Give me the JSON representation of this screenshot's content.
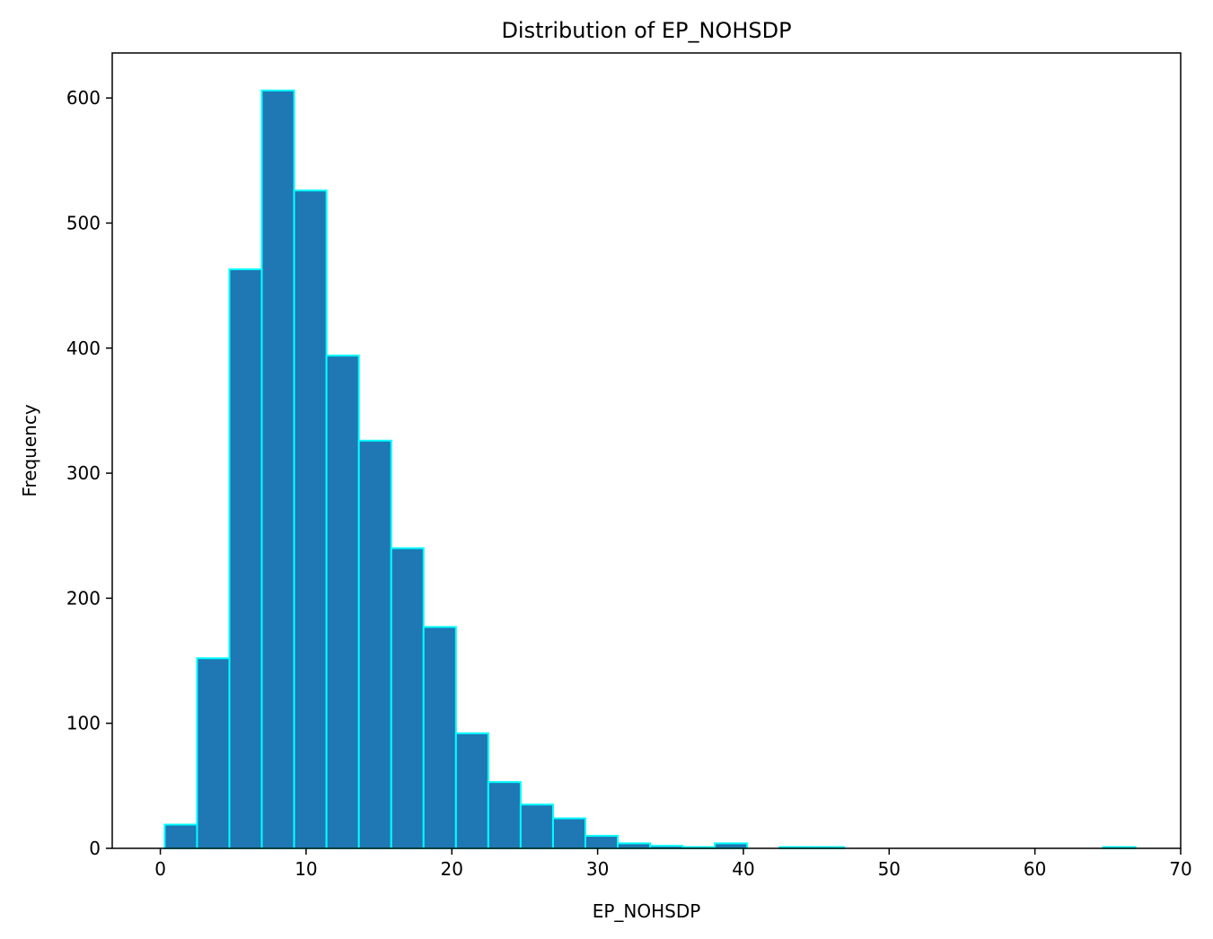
{
  "chart_data": {
    "type": "bar",
    "title": "Distribution of EP_NOHSDP",
    "xlabel": "EP_NOHSDP",
    "ylabel": "Frequency",
    "xlim": [
      -3.3,
      70
    ],
    "ylim": [
      0,
      636
    ],
    "xticks": [
      0,
      10,
      20,
      30,
      40,
      50,
      60,
      70
    ],
    "yticks": [
      0,
      100,
      200,
      300,
      400,
      500,
      600
    ],
    "bin_edges": [
      0.3,
      2.52,
      4.74,
      6.96,
      9.18,
      11.4,
      13.62,
      15.84,
      18.06,
      20.28,
      22.5,
      24.72,
      26.94,
      29.16,
      31.38,
      33.6,
      35.82,
      38.04,
      40.26,
      42.48,
      44.7,
      46.92,
      49.14,
      51.36,
      53.58,
      55.8,
      58.02,
      60.24,
      62.46,
      64.68,
      66.9
    ],
    "values": [
      19,
      152,
      463,
      606,
      526,
      394,
      326,
      240,
      177,
      92,
      53,
      35,
      24,
      10,
      4,
      2,
      1,
      4,
      0,
      1,
      1,
      0,
      0,
      0,
      0,
      0,
      0,
      0,
      0,
      1
    ],
    "bar_color": "#1f77b4",
    "edge_color": "#00ffff",
    "grid": false
  }
}
